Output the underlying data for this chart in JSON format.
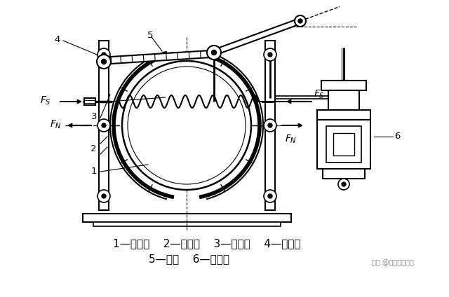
{
  "background_color": "#ffffff",
  "line_color": "#000000",
  "legend_line1": "1—制动轮    2—闸瓦块    3—主弹簧    4—制动臂",
  "legend_line2": "5—推杆    6—松闸器",
  "watermark": "头条 @科技智能制造",
  "figsize": [
    6.4,
    4.24
  ],
  "dpi": 100
}
